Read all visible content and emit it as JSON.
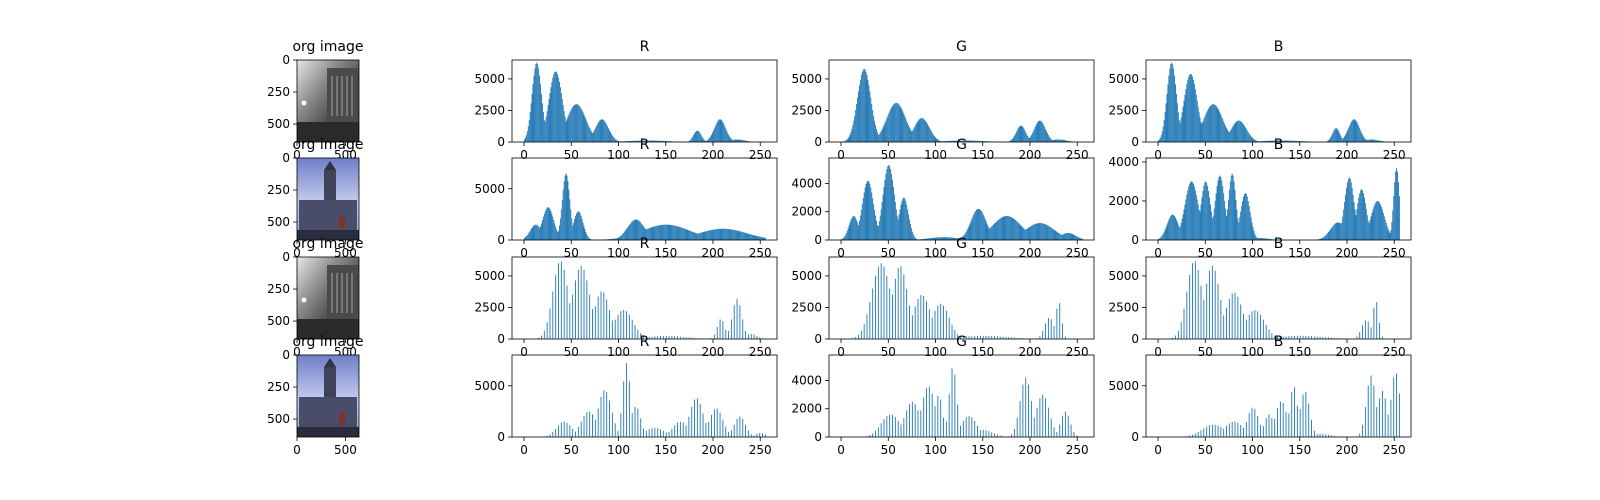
{
  "figure": {
    "colors": {
      "bar": "#1f77b4",
      "axis": "#000000",
      "background": "#ffffff"
    },
    "rows": [
      {
        "image": {
          "title": "org image",
          "icon": "grayscale-street-photo",
          "xticks": [
            0,
            500
          ],
          "yticks": [
            0,
            250,
            500
          ],
          "xlim": [
            0,
            640
          ],
          "ylim": [
            0,
            640
          ]
        },
        "histograms": [
          {
            "title": "R",
            "ylim": [
              0,
              6500
            ],
            "yticks": [
              0,
              2500,
              5000
            ]
          },
          {
            "title": "G",
            "ylim": [
              0,
              6500
            ],
            "yticks": [
              0,
              2500,
              5000
            ]
          },
          {
            "title": "B",
            "ylim": [
              0,
              6500
            ],
            "yticks": [
              0,
              2500,
              5000
            ]
          }
        ]
      },
      {
        "image": {
          "title": "org image",
          "icon": "church-photo-blue-sky",
          "xticks": [
            0,
            500
          ],
          "yticks": [
            0,
            250,
            500
          ],
          "xlim": [
            0,
            640
          ],
          "ylim": [
            0,
            640
          ]
        },
        "histograms": [
          {
            "title": "R",
            "ylim": [
              0,
              8000
            ],
            "yticks": [
              0,
              5000
            ]
          },
          {
            "title": "G",
            "ylim": [
              0,
              5800
            ],
            "yticks": [
              0,
              2000,
              4000
            ]
          },
          {
            "title": "B",
            "ylim": [
              0,
              4200
            ],
            "yticks": [
              0,
              2000,
              4000
            ]
          }
        ]
      },
      {
        "image": {
          "title": "org image",
          "icon": "grayscale-street-photo",
          "xticks": [
            0,
            500
          ],
          "yticks": [
            0,
            250,
            500
          ],
          "xlim": [
            0,
            640
          ],
          "ylim": [
            0,
            640
          ]
        },
        "histograms": [
          {
            "title": "R",
            "ylim": [
              0,
              6500
            ],
            "yticks": [
              0,
              2500,
              5000
            ]
          },
          {
            "title": "G",
            "ylim": [
              0,
              6500
            ],
            "yticks": [
              0,
              2500,
              5000
            ]
          },
          {
            "title": "B",
            "ylim": [
              0,
              6500
            ],
            "yticks": [
              0,
              2500,
              5000
            ]
          }
        ]
      },
      {
        "image": {
          "title": "org image",
          "icon": "church-photo-blue-sky",
          "xticks": [
            0,
            500
          ],
          "yticks": [
            0,
            250,
            500
          ],
          "xlim": [
            0,
            640
          ],
          "ylim": [
            0,
            640
          ]
        },
        "histograms": [
          {
            "title": "R",
            "ylim": [
              0,
              8000
            ],
            "yticks": [
              0,
              5000
            ]
          },
          {
            "title": "G",
            "ylim": [
              0,
              5800
            ],
            "yticks": [
              0,
              2000,
              4000
            ]
          },
          {
            "title": "B",
            "ylim": [
              0,
              8000
            ],
            "yticks": [
              0,
              5000
            ]
          }
        ]
      }
    ]
  },
  "chart_data": {
    "type": "bar",
    "bins": 256,
    "x_range": [
      0,
      255
    ],
    "xlim": [
      -12.75,
      267.75
    ],
    "xticks": [
      0,
      50,
      100,
      150,
      200,
      250
    ],
    "histograms": [
      {
        "row": 1,
        "channel": "R",
        "stride": 1,
        "peaks": [
          [
            13,
            6300,
            5
          ],
          [
            33,
            5600,
            7
          ],
          [
            55,
            3000,
            10
          ],
          [
            82,
            1800,
            7
          ],
          [
            130,
            120,
            20
          ],
          [
            183,
            900,
            4
          ],
          [
            207,
            1800,
            6
          ],
          [
            225,
            200,
            8
          ]
        ]
      },
      {
        "row": 1,
        "channel": "G",
        "stride": 1,
        "peaks": [
          [
            24,
            5800,
            7
          ],
          [
            58,
            3100,
            10
          ],
          [
            85,
            1900,
            8
          ],
          [
            130,
            120,
            20
          ],
          [
            190,
            1300,
            5
          ],
          [
            210,
            1700,
            6
          ],
          [
            230,
            200,
            8
          ]
        ]
      },
      {
        "row": 1,
        "channel": "B",
        "stride": 1,
        "peaks": [
          [
            14,
            6300,
            5
          ],
          [
            34,
            5400,
            7
          ],
          [
            58,
            3000,
            10
          ],
          [
            85,
            1700,
            8
          ],
          [
            130,
            120,
            20
          ],
          [
            188,
            1100,
            4
          ],
          [
            207,
            1800,
            6
          ],
          [
            225,
            200,
            8
          ]
        ]
      },
      {
        "row": 2,
        "channel": "R",
        "stride": 1,
        "peaks": [
          [
            12,
            1500,
            6
          ],
          [
            25,
            3200,
            6
          ],
          [
            44,
            6500,
            4
          ],
          [
            47,
            4500,
            2
          ],
          [
            57,
            2800,
            5
          ],
          [
            118,
            2000,
            9
          ],
          [
            150,
            1500,
            25
          ],
          [
            210,
            1100,
            25
          ],
          [
            240,
            400,
            10
          ]
        ]
      },
      {
        "row": 2,
        "channel": "G",
        "stride": 1,
        "peaks": [
          [
            13,
            1700,
            5
          ],
          [
            28,
            4200,
            6
          ],
          [
            50,
            5300,
            6
          ],
          [
            66,
            3000,
            5
          ],
          [
            108,
            200,
            15
          ],
          [
            145,
            2200,
            8
          ],
          [
            175,
            1700,
            15
          ],
          [
            210,
            1200,
            15
          ],
          [
            240,
            500,
            8
          ]
        ]
      },
      {
        "row": 2,
        "channel": "B",
        "stride": 1,
        "peaks": [
          [
            15,
            1300,
            6
          ],
          [
            35,
            3000,
            7
          ],
          [
            50,
            3000,
            5
          ],
          [
            65,
            3300,
            5
          ],
          [
            78,
            3400,
            4
          ],
          [
            92,
            2400,
            5
          ],
          [
            107,
            100,
            10
          ],
          [
            190,
            900,
            8
          ],
          [
            202,
            3200,
            5
          ],
          [
            215,
            2600,
            5
          ],
          [
            232,
            2000,
            7
          ],
          [
            252,
            3700,
            3
          ]
        ]
      },
      {
        "row": 3,
        "channel": "R",
        "stride": 3,
        "peaks": [
          [
            38,
            6200,
            8
          ],
          [
            60,
            5800,
            9
          ],
          [
            82,
            3800,
            8
          ],
          [
            105,
            2300,
            10
          ],
          [
            150,
            250,
            20
          ],
          [
            208,
            1600,
            4
          ],
          [
            225,
            3200,
            5
          ],
          [
            240,
            400,
            6
          ]
        ]
      },
      {
        "row": 3,
        "channel": "G",
        "stride": 3,
        "peaks": [
          [
            42,
            6000,
            10
          ],
          [
            62,
            5800,
            8
          ],
          [
            85,
            3500,
            9
          ],
          [
            105,
            2800,
            9
          ],
          [
            150,
            250,
            25
          ],
          [
            220,
            1700,
            5
          ],
          [
            230,
            3000,
            3
          ]
        ]
      },
      {
        "row": 3,
        "channel": "B",
        "stride": 3,
        "peaks": [
          [
            38,
            6200,
            8
          ],
          [
            57,
            5800,
            8
          ],
          [
            80,
            3700,
            9
          ],
          [
            102,
            2300,
            10
          ],
          [
            150,
            250,
            25
          ],
          [
            220,
            1500,
            5
          ],
          [
            230,
            3100,
            3
          ]
        ]
      },
      {
        "row": 4,
        "channel": "R",
        "stride": 3,
        "peaks": [
          [
            42,
            1500,
            8
          ],
          [
            68,
            2500,
            8
          ],
          [
            85,
            4600,
            7
          ],
          [
            108,
            7200,
            4
          ],
          [
            118,
            3000,
            5
          ],
          [
            138,
            900,
            10
          ],
          [
            165,
            1500,
            8
          ],
          [
            182,
            3800,
            7
          ],
          [
            203,
            2800,
            7
          ],
          [
            228,
            2000,
            6
          ],
          [
            250,
            400,
            5
          ]
        ]
      },
      {
        "row": 4,
        "channel": "G",
        "stride": 3,
        "peaks": [
          [
            52,
            1600,
            10
          ],
          [
            75,
            2500,
            8
          ],
          [
            92,
            3600,
            7
          ],
          [
            103,
            3000,
            4
          ],
          [
            118,
            5000,
            4
          ],
          [
            135,
            1500,
            8
          ],
          [
            150,
            500,
            10
          ],
          [
            195,
            4200,
            6
          ],
          [
            213,
            3000,
            7
          ],
          [
            237,
            1800,
            5
          ]
        ]
      },
      {
        "row": 4,
        "channel": "B",
        "stride": 3,
        "peaks": [
          [
            58,
            1200,
            12
          ],
          [
            80,
            1500,
            10
          ],
          [
            100,
            2900,
            6
          ],
          [
            117,
            2200,
            5
          ],
          [
            130,
            3500,
            6
          ],
          [
            143,
            5000,
            4
          ],
          [
            155,
            4500,
            5
          ],
          [
            172,
            300,
            10
          ],
          [
            225,
            6000,
            5
          ],
          [
            237,
            4500,
            5
          ],
          [
            250,
            6000,
            4
          ],
          [
            253,
            7000,
            2
          ]
        ]
      }
    ]
  }
}
